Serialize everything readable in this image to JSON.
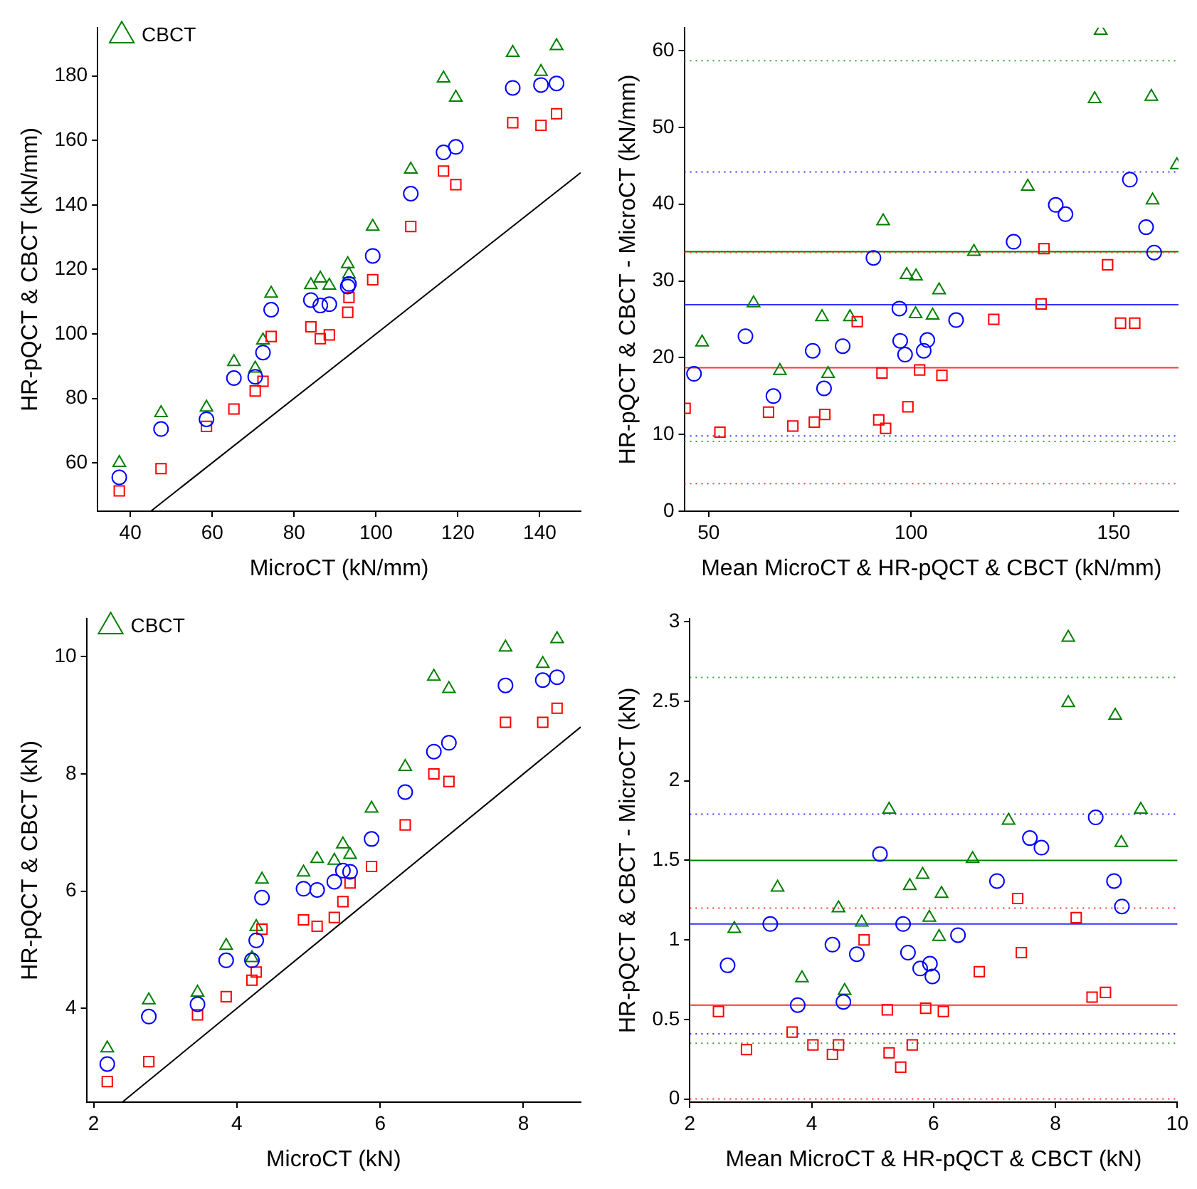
{
  "chart_data": [
    {
      "type": "scatter",
      "xlabel": "MicroCT (kN/mm)",
      "ylabel": "HR-pQCT & CBCT (kN/mm)",
      "xlim": [
        32,
        150
      ],
      "ylim": [
        45,
        195
      ],
      "xticks": [
        40,
        60,
        80,
        100,
        120,
        140
      ],
      "yticks": [
        60,
        80,
        100,
        120,
        140,
        160,
        180
      ],
      "legend": "top left",
      "x": [
        37.3,
        47.5,
        58.6,
        65.3,
        70.5,
        72.4,
        74.4,
        84.1,
        86.4,
        88.6,
        93.1,
        93.4,
        99.2,
        108.5,
        116.5,
        119.5,
        133.4,
        140.3,
        144.1
      ],
      "series": [
        {
          "color": "#0000ff",
          "marker": "circle",
          "values": [
            55.5,
            70.5,
            73.5,
            86.3,
            86.7,
            94.2,
            107.5,
            110.5,
            108.8,
            109.2,
            114.7,
            115.5,
            124.2,
            143.5,
            156.3,
            158,
            176.3,
            177.2,
            177.7
          ]
        },
        {
          "color": "#ff0000",
          "marker": "square",
          "values": [
            51.3,
            58.2,
            71.3,
            76.7,
            82.3,
            85.3,
            99.2,
            102.2,
            98.5,
            99.7,
            106.7,
            111.3,
            116.8,
            133.3,
            150.5,
            146.3,
            165.5,
            164.7,
            168.3
          ]
        },
        {
          "name": "CBCT",
          "color": "#008000",
          "marker": "triangle",
          "values": [
            60,
            75.5,
            77.2,
            91.3,
            89.3,
            98,
            112.5,
            115.2,
            117.2,
            115,
            121.7,
            118.5,
            133.3,
            151,
            179.3,
            173.3,
            187.2,
            181.3,
            189.3
          ]
        },
        {
          "type": "line",
          "color": "#000000",
          "marker": "none",
          "x": [
            45,
            150
          ],
          "values": [
            45,
            150
          ]
        }
      ]
    },
    {
      "type": "scatter",
      "xlabel": "Mean MicroCT & HR-pQCT & CBCT (kN/mm)",
      "ylabel": "HR-pQCT & CBCT - MicroCT (kN/mm)",
      "xlim": [
        44,
        166
      ],
      "ylim": [
        0,
        63
      ],
      "xticks": [
        50,
        100,
        150
      ],
      "yticks": [
        0,
        10,
        20,
        30,
        40,
        50,
        60
      ],
      "series": [
        {
          "color": "#0000ff",
          "marker": "circle",
          "x": [
            46.4,
            59.1,
            66,
            75.7,
            78.5,
            83.1,
            90.7,
            97.1,
            97.3,
            98.5,
            103.1,
            104,
            111.1,
            125.3,
            135.7,
            138.1,
            154,
            158,
            160
          ],
          "values": [
            17.9,
            22.8,
            15,
            20.9,
            16,
            21.5,
            33,
            26.4,
            22.2,
            20.4,
            20.9,
            22.3,
            24.9,
            35.1,
            39.9,
            38.7,
            43.2,
            37,
            33.7
          ]
        },
        {
          "color": "#ff0000",
          "marker": "square",
          "x": [
            44.2,
            52.8,
            64.8,
            70.8,
            76.1,
            78.7,
            86.7,
            92,
            92.8,
            93.7,
            99.2,
            102.1,
            107.6,
            120.4,
            132.1,
            132.8,
            148.5,
            151.7,
            155.2
          ],
          "values": [
            13.4,
            10.3,
            12.9,
            11.1,
            11.6,
            12.6,
            24.7,
            11.9,
            18,
            10.8,
            13.6,
            18.4,
            17.7,
            25,
            27,
            34.2,
            32.1,
            24.5,
            24.5
          ]
        },
        {
          "color": "#008000",
          "marker": "triangle",
          "x": [
            48.4,
            61.1,
            67.6,
            78,
            79.5,
            84.9,
            93.1,
            98.9,
            101.2,
            101.1,
            105.3,
            106.9,
            115.5,
            128.8,
            145.3,
            146.8,
            159.3,
            159.6,
            165.6
          ],
          "values": [
            22,
            27.1,
            18.3,
            25.3,
            17.9,
            25.3,
            37.8,
            30.8,
            30.6,
            25.7,
            25.5,
            28.8,
            33.8,
            42.3,
            53.7,
            62.6,
            54,
            40.5,
            45.1
          ]
        }
      ],
      "ref_lines": [
        {
          "axis": "y",
          "value": 58.7,
          "color": "#33a033",
          "line_style": "dotted"
        },
        {
          "axis": "y",
          "value": 33.8,
          "color": "#008000",
          "line_style": "solid"
        },
        {
          "axis": "y",
          "value": 9.1,
          "color": "#33a033",
          "line_style": "dotted"
        },
        {
          "axis": "y",
          "value": 44.2,
          "color": "#3333ff",
          "line_style": "dotted"
        },
        {
          "axis": "y",
          "value": 26.9,
          "color": "#3333ff",
          "line_style": "solid"
        },
        {
          "axis": "y",
          "value": 9.8,
          "color": "#3333ff",
          "line_style": "dotted"
        },
        {
          "axis": "y",
          "value": 33.7,
          "color": "#ff3333",
          "line_style": "dotted"
        },
        {
          "axis": "y",
          "value": 18.7,
          "color": "#ff3333",
          "line_style": "solid"
        },
        {
          "axis": "y",
          "value": 3.6,
          "color": "#ff3333",
          "line_style": "dotted"
        }
      ]
    },
    {
      "type": "scatter",
      "xlabel": "MicroCT (kN)",
      "ylabel": "HR-pQCT & CBCT (kN)",
      "xlim": [
        1.9,
        8.8
      ],
      "ylim": [
        2.4,
        10.65
      ],
      "xticks": [
        2,
        4,
        6,
        8
      ],
      "yticks": [
        4,
        6,
        8,
        10
      ],
      "legend": "top left",
      "x": [
        2.19,
        2.77,
        3.45,
        3.85,
        4.21,
        4.27,
        4.35,
        4.93,
        5.12,
        5.36,
        5.48,
        5.58,
        5.88,
        6.35,
        6.75,
        6.96,
        7.75,
        8.27,
        8.47
      ],
      "series": [
        {
          "color": "#0000ff",
          "marker": "circle",
          "values": [
            3.05,
            3.86,
            4.07,
            4.82,
            4.82,
            5.16,
            5.89,
            6.04,
            6.02,
            6.16,
            6.35,
            6.33,
            6.89,
            7.69,
            8.38,
            8.53,
            9.51,
            9.6,
            9.65
          ]
        },
        {
          "color": "#ff0000",
          "marker": "square",
          "values": [
            2.75,
            3.09,
            3.89,
            4.2,
            4.48,
            4.62,
            5.35,
            5.51,
            5.4,
            5.55,
            5.82,
            6.14,
            6.42,
            7.13,
            8,
            7.87,
            8.88,
            8.88,
            9.12
          ]
        },
        {
          "name": "CBCT",
          "color": "#008000",
          "marker": "triangle",
          "values": [
            3.32,
            4.14,
            4.27,
            5.07,
            4.86,
            5.39,
            6.2,
            6.32,
            6.55,
            6.52,
            6.8,
            6.62,
            7.41,
            8.12,
            9.66,
            9.45,
            10.16,
            9.88,
            10.3
          ]
        },
        {
          "type": "line",
          "color": "#000000",
          "marker": "none",
          "x": [
            2.4,
            8.8
          ],
          "values": [
            2.4,
            8.8
          ]
        }
      ]
    },
    {
      "type": "scatter",
      "xlabel": "Mean MicroCT & HR-pQCT & CBCT (kN)",
      "ylabel": "HR-pQCT & CBCT - MicroCT (kN)",
      "xlim": [
        2,
        10
      ],
      "ylim": [
        -0.02,
        3.02
      ],
      "xticks": [
        2,
        4,
        6,
        8,
        10
      ],
      "yticks": [
        0,
        0.5,
        1,
        1.5,
        2,
        2.5,
        3
      ],
      "series": [
        {
          "color": "#0000ff",
          "marker": "circle",
          "x": [
            2.62,
            3.32,
            3.77,
            4.34,
            4.52,
            4.74,
            5.12,
            5.5,
            5.58,
            5.78,
            5.94,
            5.98,
            6.4,
            7.04,
            7.58,
            7.77,
            8.66,
            8.96,
            9.09
          ],
          "values": [
            0.84,
            1.1,
            0.59,
            0.97,
            0.61,
            0.91,
            1.54,
            1.1,
            0.92,
            0.82,
            0.85,
            0.77,
            1.03,
            1.37,
            1.64,
            1.58,
            1.77,
            1.37,
            1.21
          ]
        },
        {
          "color": "#ff0000",
          "marker": "square",
          "x": [
            2.47,
            2.93,
            3.68,
            4.02,
            4.34,
            4.44,
            4.86,
            5.24,
            5.27,
            5.46,
            5.65,
            5.87,
            6.16,
            6.75,
            7.38,
            7.44,
            8.34,
            8.6,
            8.82
          ],
          "values": [
            0.55,
            0.31,
            0.42,
            0.34,
            0.28,
            0.34,
            1.0,
            0.56,
            0.29,
            0.2,
            0.34,
            0.57,
            0.55,
            0.8,
            1.26,
            0.92,
            1.14,
            0.64,
            0.67
          ]
        },
        {
          "color": "#008000",
          "marker": "triangle",
          "x": [
            2.73,
            3.44,
            3.84,
            4.44,
            4.54,
            4.82,
            5.27,
            5.61,
            5.82,
            5.93,
            6.09,
            6.13,
            6.64,
            7.23,
            8.21,
            8.21,
            8.98,
            9.08,
            9.4
          ],
          "values": [
            1.07,
            1.33,
            0.76,
            1.2,
            0.68,
            1.11,
            1.82,
            1.34,
            1.41,
            1.14,
            1.02,
            1.29,
            1.51,
            1.75,
            2.9,
            2.49,
            2.41,
            1.61,
            1.82
          ]
        }
      ],
      "ref_lines": [
        {
          "axis": "y",
          "value": 2.65,
          "color": "#33a033",
          "line_style": "dotted"
        },
        {
          "axis": "y",
          "value": 1.5,
          "color": "#008000",
          "line_style": "solid"
        },
        {
          "axis": "y",
          "value": 0.35,
          "color": "#33a033",
          "line_style": "dotted"
        },
        {
          "axis": "y",
          "value": 1.79,
          "color": "#3333ff",
          "line_style": "dotted"
        },
        {
          "axis": "y",
          "value": 1.1,
          "color": "#3333ff",
          "line_style": "solid"
        },
        {
          "axis": "y",
          "value": 0.41,
          "color": "#3333ff",
          "line_style": "dotted"
        },
        {
          "axis": "y",
          "value": 1.2,
          "color": "#ff3333",
          "line_style": "dotted"
        },
        {
          "axis": "y",
          "value": 0.59,
          "color": "#ff3333",
          "line_style": "solid"
        },
        {
          "axis": "y",
          "value": 0,
          "color": "#ff3333",
          "line_style": "dotted"
        }
      ]
    }
  ]
}
